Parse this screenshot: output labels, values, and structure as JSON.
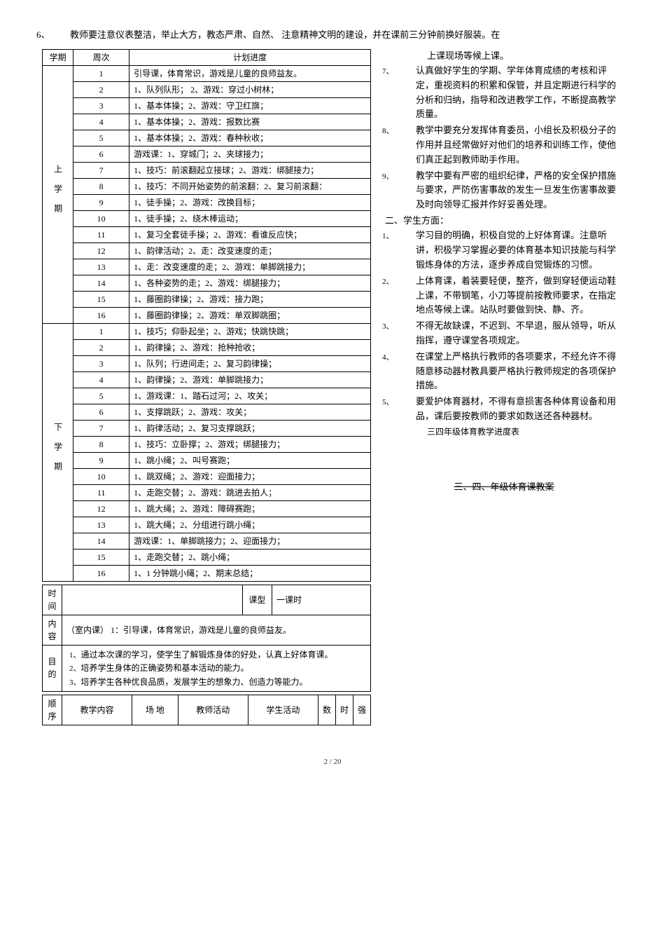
{
  "intro": {
    "num6": "6、",
    "text6": "教师要注意仪表整洁，举止大方，教态严肃、自然、 注意精神文明的建设，并在课前三分钟前换好服装。在"
  },
  "schedule_header": {
    "term": "学期",
    "week": "周次",
    "plan": "计划进度"
  },
  "term_labels": {
    "upper": "上学期",
    "lower": "下学期"
  },
  "schedule_upper": [
    {
      "w": "1",
      "p": "引导课，体育常识，游戏是儿童的良师益友。"
    },
    {
      "w": "2",
      "p": "1、队列队形；   2、游戏：穿过小树林；"
    },
    {
      "w": "3",
      "p": "1、基本体操；2、游戏：守卫红旗；"
    },
    {
      "w": "4",
      "p": "1、基本体操；2、游戏：报数比赛"
    },
    {
      "w": "5",
      "p": "1、基本体操；2、游戏：春种秋收；"
    },
    {
      "w": "6",
      "p": "游戏课：1、穿城门；2、夹球接力；"
    },
    {
      "w": "7",
      "p": "1、技巧：前滚翻起立接球；2、游戏：绑腿接力；"
    },
    {
      "w": "8",
      "p": "1、技巧：不同开始姿势的前滚翻：2、复习前滚翻："
    },
    {
      "w": "9",
      "p": "1、徒手操；2、游戏：改换目标；"
    },
    {
      "w": "10",
      "p": "1、徒手操；2、绕木棒运动；"
    },
    {
      "w": "11",
      "p": "1、复习全套徒手操；2、游戏：看谁反应快；"
    },
    {
      "w": "12",
      "p": "1、韵律活动；2、走：改变速度的走；"
    },
    {
      "w": "13",
      "p": "1、走：改变速度的走；2、游戏：单脚跳接力；"
    },
    {
      "w": "14",
      "p": "1、各种姿势的走；2、游戏：绑腿接力；"
    },
    {
      "w": "15",
      "p": "1、藤圈韵律操；2、游戏：接力跑；"
    },
    {
      "w": "16",
      "p": "1、藤圈韵律操；2、游戏：单双脚跳圈；"
    }
  ],
  "schedule_lower": [
    {
      "w": "1",
      "p": "1、技巧；仰卧起坐；2、游戏；快跳快跳；"
    },
    {
      "w": "2",
      "p": "1、韵律操；2、游戏：抢种抢收；"
    },
    {
      "w": "3",
      "p": "1、队列；行进间走；2、复习韵律操；"
    },
    {
      "w": "4",
      "p": "1、韵律操；2、游戏：单脚跳接力；"
    },
    {
      "w": "5",
      "p": "1、游戏课：1、踏石过河；2、攻关；"
    },
    {
      "w": "6",
      "p": "1、支撑跳跃；2、游戏：攻关；"
    },
    {
      "w": "7",
      "p": "1、韵律活动；2、复习支撑跳跃；"
    },
    {
      "w": "8",
      "p": "1、技巧：立卧撑；2、游戏；绑腿接力；"
    },
    {
      "w": "9",
      "p": "1、跳小绳；2、叫号赛跑；"
    },
    {
      "w": "10",
      "p": "1、跳双绳；2、游戏：迎面接力；"
    },
    {
      "w": "11",
      "p": "1、走跑交替；2、游戏：跳进去拍人；"
    },
    {
      "w": "12",
      "p": "1、跳大绳；2、游戏：障碍赛跑；"
    },
    {
      "w": "13",
      "p": "1、跳大绳；2、分组进行跳小绳；"
    },
    {
      "w": "14",
      "p": "游戏课：1、单脚跳接力；2、迎面接力；"
    },
    {
      "w": "15",
      "p": "1、走跑交替；2、跳小绳；"
    },
    {
      "w": "16",
      "p": "1、1 分钟跳小绳；2、期末总结；"
    }
  ],
  "lesson": {
    "time_label": "时间",
    "type_label": "课型",
    "type_value": "一课时",
    "content_label": "内容",
    "content_value": "（室内课）  1：引导课，体育常识，游戏是儿童的良师益友。",
    "objective_label": "目的",
    "objectives": [
      {
        "n": "1、",
        "t": "通过本次课的学习，使学生了解锻炼身体的好处，认真上好体育课。"
      },
      {
        "n": "2、",
        "t": "培养学生身体的正确姿势和基本活动的能力。"
      },
      {
        "n": "3、",
        "t": "培养学生各种优良品质，发展学生的想象力、创造力等能力。"
      }
    ],
    "seq_label": "顺序",
    "cols": {
      "c1": "教学内容",
      "c2": "场  地",
      "c3": "教师活动",
      "c4": "学生活动",
      "c5": "数",
      "c6": "时",
      "c7": "强"
    }
  },
  "right": {
    "cont": "上课现场等候上课。",
    "items_a": [
      {
        "n": "7、",
        "t": "认真做好学生的学期、学年体育成绩的考核和评定，重视资料的积累和保管，并且定期进行科学的分析和归纳，指导和改进教学工作，不断提高教学质量。"
      },
      {
        "n": "8、",
        "t": "教学中要充分发挥体育委员，小组长及积极分子的作用并且经常做好对他们的培养和训练工作，使他们真正起到教师助手作用。"
      },
      {
        "n": "9、",
        "t": "教学中要有严密的组织纪律，严格的安全保护措施与要求，严防伤害事故的发生一旦发生伤害事故要及时向领导汇报并作好妥善处理。"
      }
    ],
    "heading_b_num": "二、",
    "heading_b": "学生方面：",
    "items_b": [
      {
        "n": "1、",
        "t": "学习目的明确，积极自觉的上好体育课。注意听讲，积极学习掌握必要的体育基本知识技能与科学锻炼身体的方法，逐步养成自觉锻炼的习惯。"
      },
      {
        "n": "2、",
        "t": "上体育课，着装要轻便，整齐，做到穿轻便运动鞋上课，不带钢笔，小刀等提前按教师要求，在指定地点等候上课。站队时要做到快、静、齐。"
      },
      {
        "n": "3、",
        "t": "不得无故缺课，不迟到、不早退，服从领导，听从指挥，遵守课堂各项规定。"
      },
      {
        "n": "4、",
        "t": "在课堂上严格执行教师的各项要求，不经允许不得随意移动器材教具要严格执行教师规定的各项保护措施。"
      },
      {
        "n": "5、",
        "t": "要爱护体育器材，不得有意损害各种体育设备和用品，课后要按教师的要求如数送还各种器材。"
      }
    ],
    "sub_title": "三四年级体育教学进度表",
    "strike_title": "三、四、年级体育课教案"
  },
  "page_footer": "2 / 20"
}
